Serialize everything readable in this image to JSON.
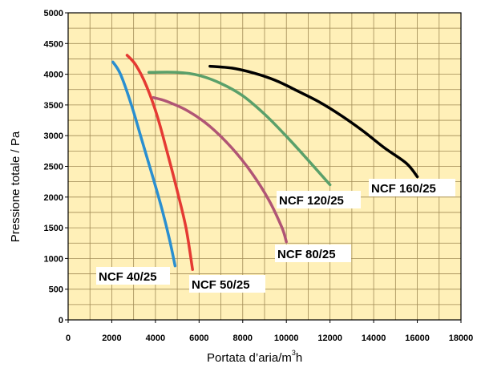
{
  "chart_data": {
    "type": "line",
    "xlabel": "Portata d’aria/m",
    "xlabel_sup": "3",
    "xlabel_suffix": "h",
    "ylabel": "Pressione totale / Pa",
    "xlim": [
      0,
      18000
    ],
    "ylim": [
      0,
      5000
    ],
    "x_ticks": [
      "0",
      "2000",
      "4000",
      "6000",
      "8000",
      "10000",
      "12000",
      "14000",
      "16000",
      "18000"
    ],
    "y_ticks": [
      "0",
      "500",
      "1000",
      "1500",
      "2000",
      "2500",
      "3000",
      "3500",
      "4000",
      "4500",
      "5000"
    ],
    "grid": true,
    "background_color": "#fff0b8",
    "grid_color": "#a08a55",
    "series": [
      {
        "name": "NCF 40/25",
        "color": "#2a8fd0",
        "x": [
          2050,
          2400,
          2900,
          3400,
          3900,
          4300,
          4650,
          4900
        ],
        "y": [
          4200,
          4000,
          3500,
          2900,
          2300,
          1800,
          1300,
          880
        ]
      },
      {
        "name": "NCF 50/25",
        "color": "#e53a33",
        "x": [
          2700,
          3100,
          3600,
          4100,
          4600,
          5000,
          5400,
          5700
        ],
        "y": [
          4310,
          4150,
          3800,
          3300,
          2650,
          2100,
          1500,
          820
        ]
      },
      {
        "name": "NCF 80/25",
        "color": "#b05575",
        "x": [
          3900,
          4500,
          5500,
          6500,
          7500,
          8400,
          9200,
          9800,
          10000
        ],
        "y": [
          3620,
          3560,
          3400,
          3150,
          2800,
          2400,
          1950,
          1500,
          1270
        ]
      },
      {
        "name": "NCF 120/25",
        "color": "#5aa06a",
        "x": [
          3700,
          5000,
          6000,
          7000,
          8000,
          9000,
          10000,
          11000,
          12000
        ],
        "y": [
          4030,
          4030,
          3980,
          3850,
          3650,
          3350,
          2990,
          2600,
          2200
        ]
      },
      {
        "name": "NCF 160/25",
        "color": "#000000",
        "x": [
          6500,
          7500,
          8500,
          9500,
          10500,
          11500,
          12500,
          13500,
          14500,
          15500,
          16000
        ],
        "y": [
          4130,
          4100,
          4020,
          3900,
          3730,
          3550,
          3330,
          3080,
          2800,
          2550,
          2330
        ]
      }
    ]
  }
}
